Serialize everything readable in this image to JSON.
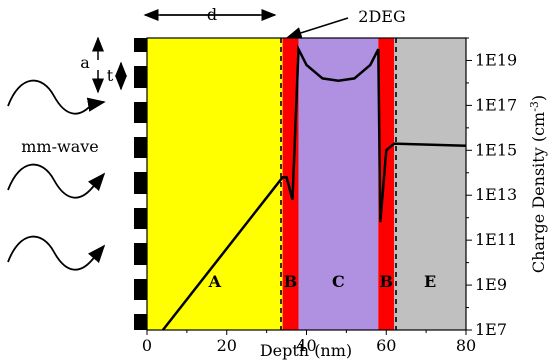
{
  "regions": [
    {
      "label": "A",
      "from_nm": 0,
      "to_nm": 34,
      "color": "#ffff00"
    },
    {
      "label": "B",
      "from_nm": 34,
      "to_nm": 38,
      "color": "#ff0000"
    },
    {
      "label": "C",
      "from_nm": 38,
      "to_nm": 58,
      "color": "#b090e0"
    },
    {
      "label": "B",
      "from_nm": 58,
      "to_nm": 62,
      "color": "#ff0000"
    },
    {
      "label": "E",
      "from_nm": 62,
      "to_nm": 80,
      "color": "#c0c0c0"
    }
  ],
  "annotations": {
    "d": "d",
    "a": "a",
    "t": "t",
    "twodeg": "2DEG",
    "mmwave": "mm-wave"
  },
  "axes": {
    "xlabel": "Depth (nm)",
    "ylabel": "Charge Density (cm",
    "ylabel_sup": "-3",
    "ylabel_end": ")",
    "xticks": [
      "0",
      "20",
      "40",
      "60",
      "80"
    ],
    "yticks": [
      "1E7",
      "1E9",
      "1E11",
      "1E13",
      "1E15",
      "1E17",
      "1E19"
    ]
  },
  "chart_data": {
    "type": "line",
    "xlabel": "Depth (nm)",
    "ylabel": "Charge Density (cm-3)",
    "xlim": [
      0,
      80
    ],
    "ylim_log10": [
      7,
      20
    ],
    "series": [
      {
        "x": [
          4,
          34,
          35,
          36.5,
          38,
          40,
          44,
          48,
          52,
          56,
          58,
          58.5,
          60,
          62,
          80
        ],
        "log10_y": [
          7,
          13.8,
          13.8,
          12.8,
          19.5,
          18.8,
          18.2,
          18.1,
          18.2,
          18.8,
          19.5,
          11.8,
          15.0,
          15.3,
          15.2
        ]
      }
    ]
  }
}
